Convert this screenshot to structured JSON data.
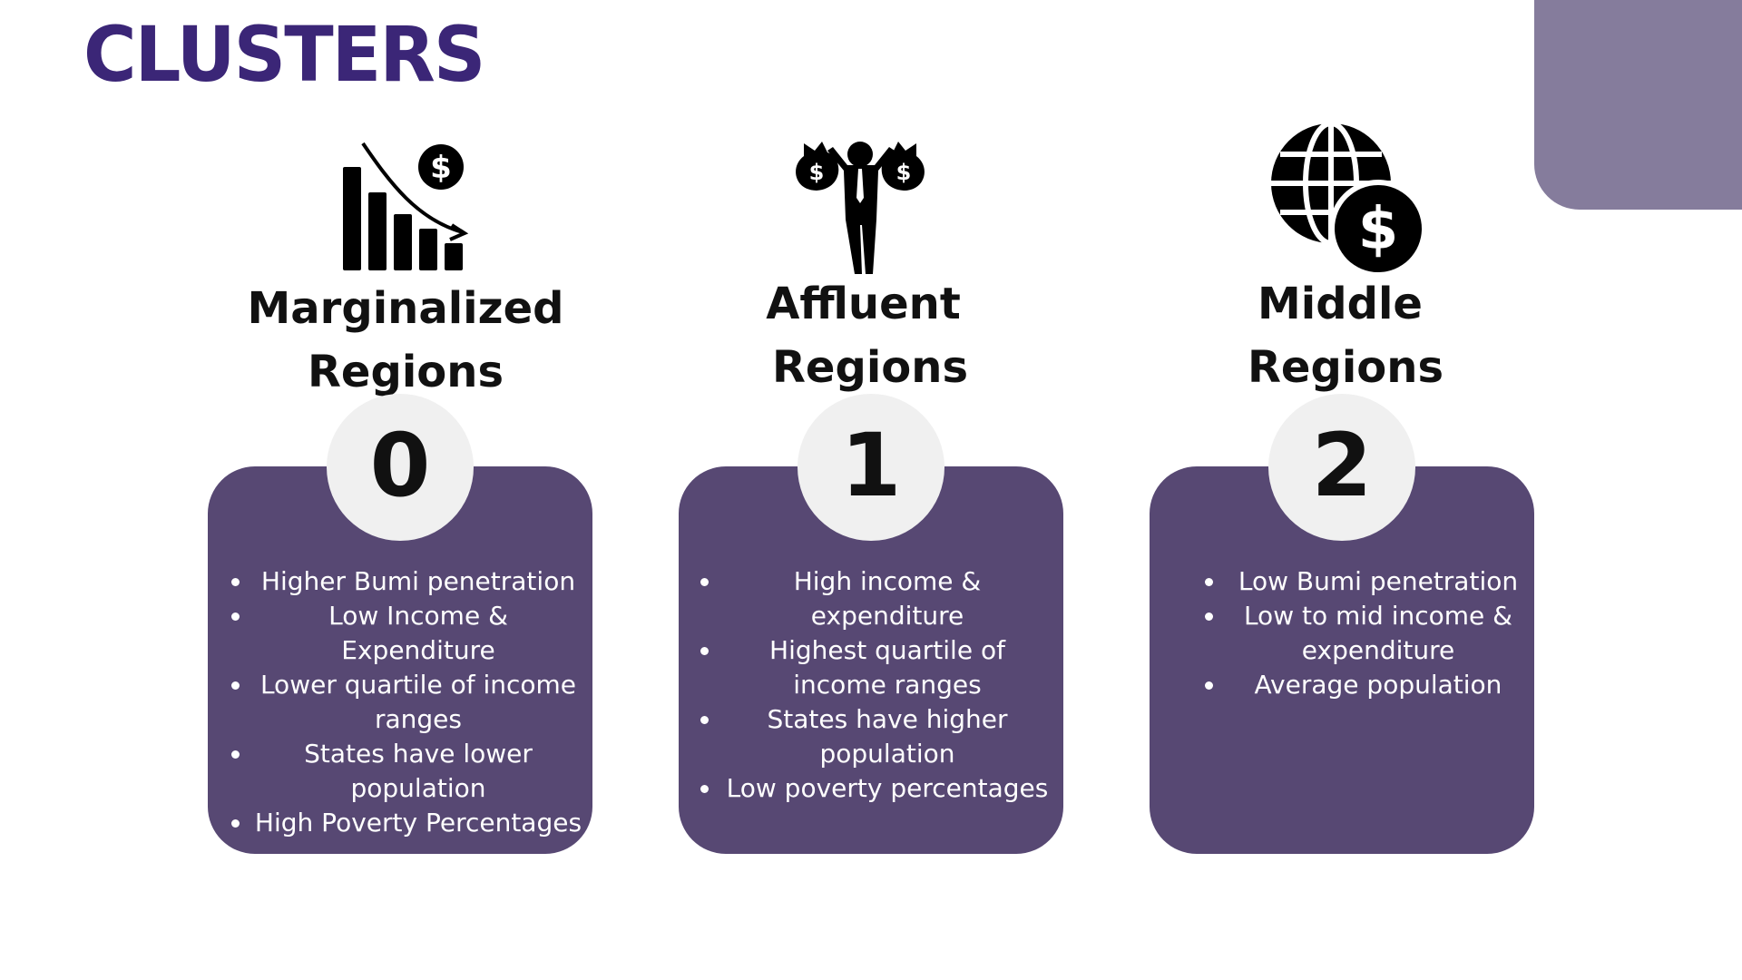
{
  "title": "CLUSTERS",
  "colors": {
    "title": "#3b2677",
    "card": "#574873",
    "corner": "#857c9c",
    "circle": "#f0f0f0"
  },
  "clusters": [
    {
      "number": "0",
      "heading_line1": "Marginalized",
      "heading_line2": "Regions",
      "icon": "declining-bar-chart-dollar-icon",
      "bullets": [
        "Higher Bumi penetration",
        "Low Income & Expenditure",
        "Lower quartile of income ranges",
        "States have lower population",
        "High Poverty Percentages"
      ]
    },
    {
      "number": "1",
      "heading_line1": "Affluent",
      "heading_line2": "Regions",
      "icon": "man-holding-money-bags-icon",
      "bullets": [
        "High income & expenditure",
        "Highest quartile of income ranges",
        "States have higher population",
        "Low poverty percentages"
      ]
    },
    {
      "number": "2",
      "heading_line1": "Middle",
      "heading_line2": "Regions",
      "icon": "globe-dollar-icon",
      "bullets": [
        "Low Bumi penetration",
        "Low to mid income & expenditure",
        "Average population"
      ]
    }
  ]
}
